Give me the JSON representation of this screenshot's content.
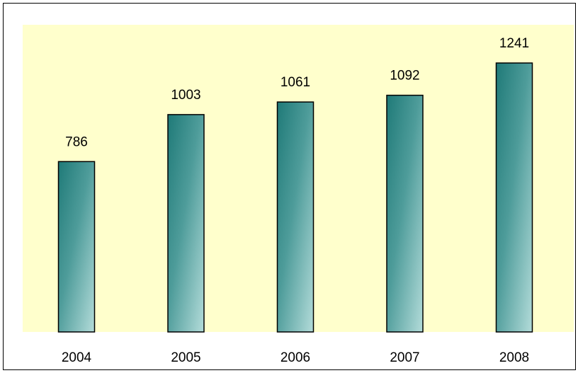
{
  "chart_data": {
    "type": "bar",
    "categories": [
      "2004",
      "2005",
      "2006",
      "2007",
      "2008"
    ],
    "values": [
      786,
      1003,
      1061,
      1092,
      1241
    ],
    "data_labels": [
      "786",
      "1003",
      "1061",
      "1092",
      "1241"
    ],
    "title": "",
    "xlabel": "",
    "ylabel": "",
    "ylim": [
      0,
      1260
    ],
    "grid": false,
    "legend": "none",
    "colors": {
      "plot_background": "#FFFFCC",
      "bar_dark": "#1F7A78",
      "bar_light": "#B4DCDA",
      "bar_border": "#000000"
    }
  }
}
